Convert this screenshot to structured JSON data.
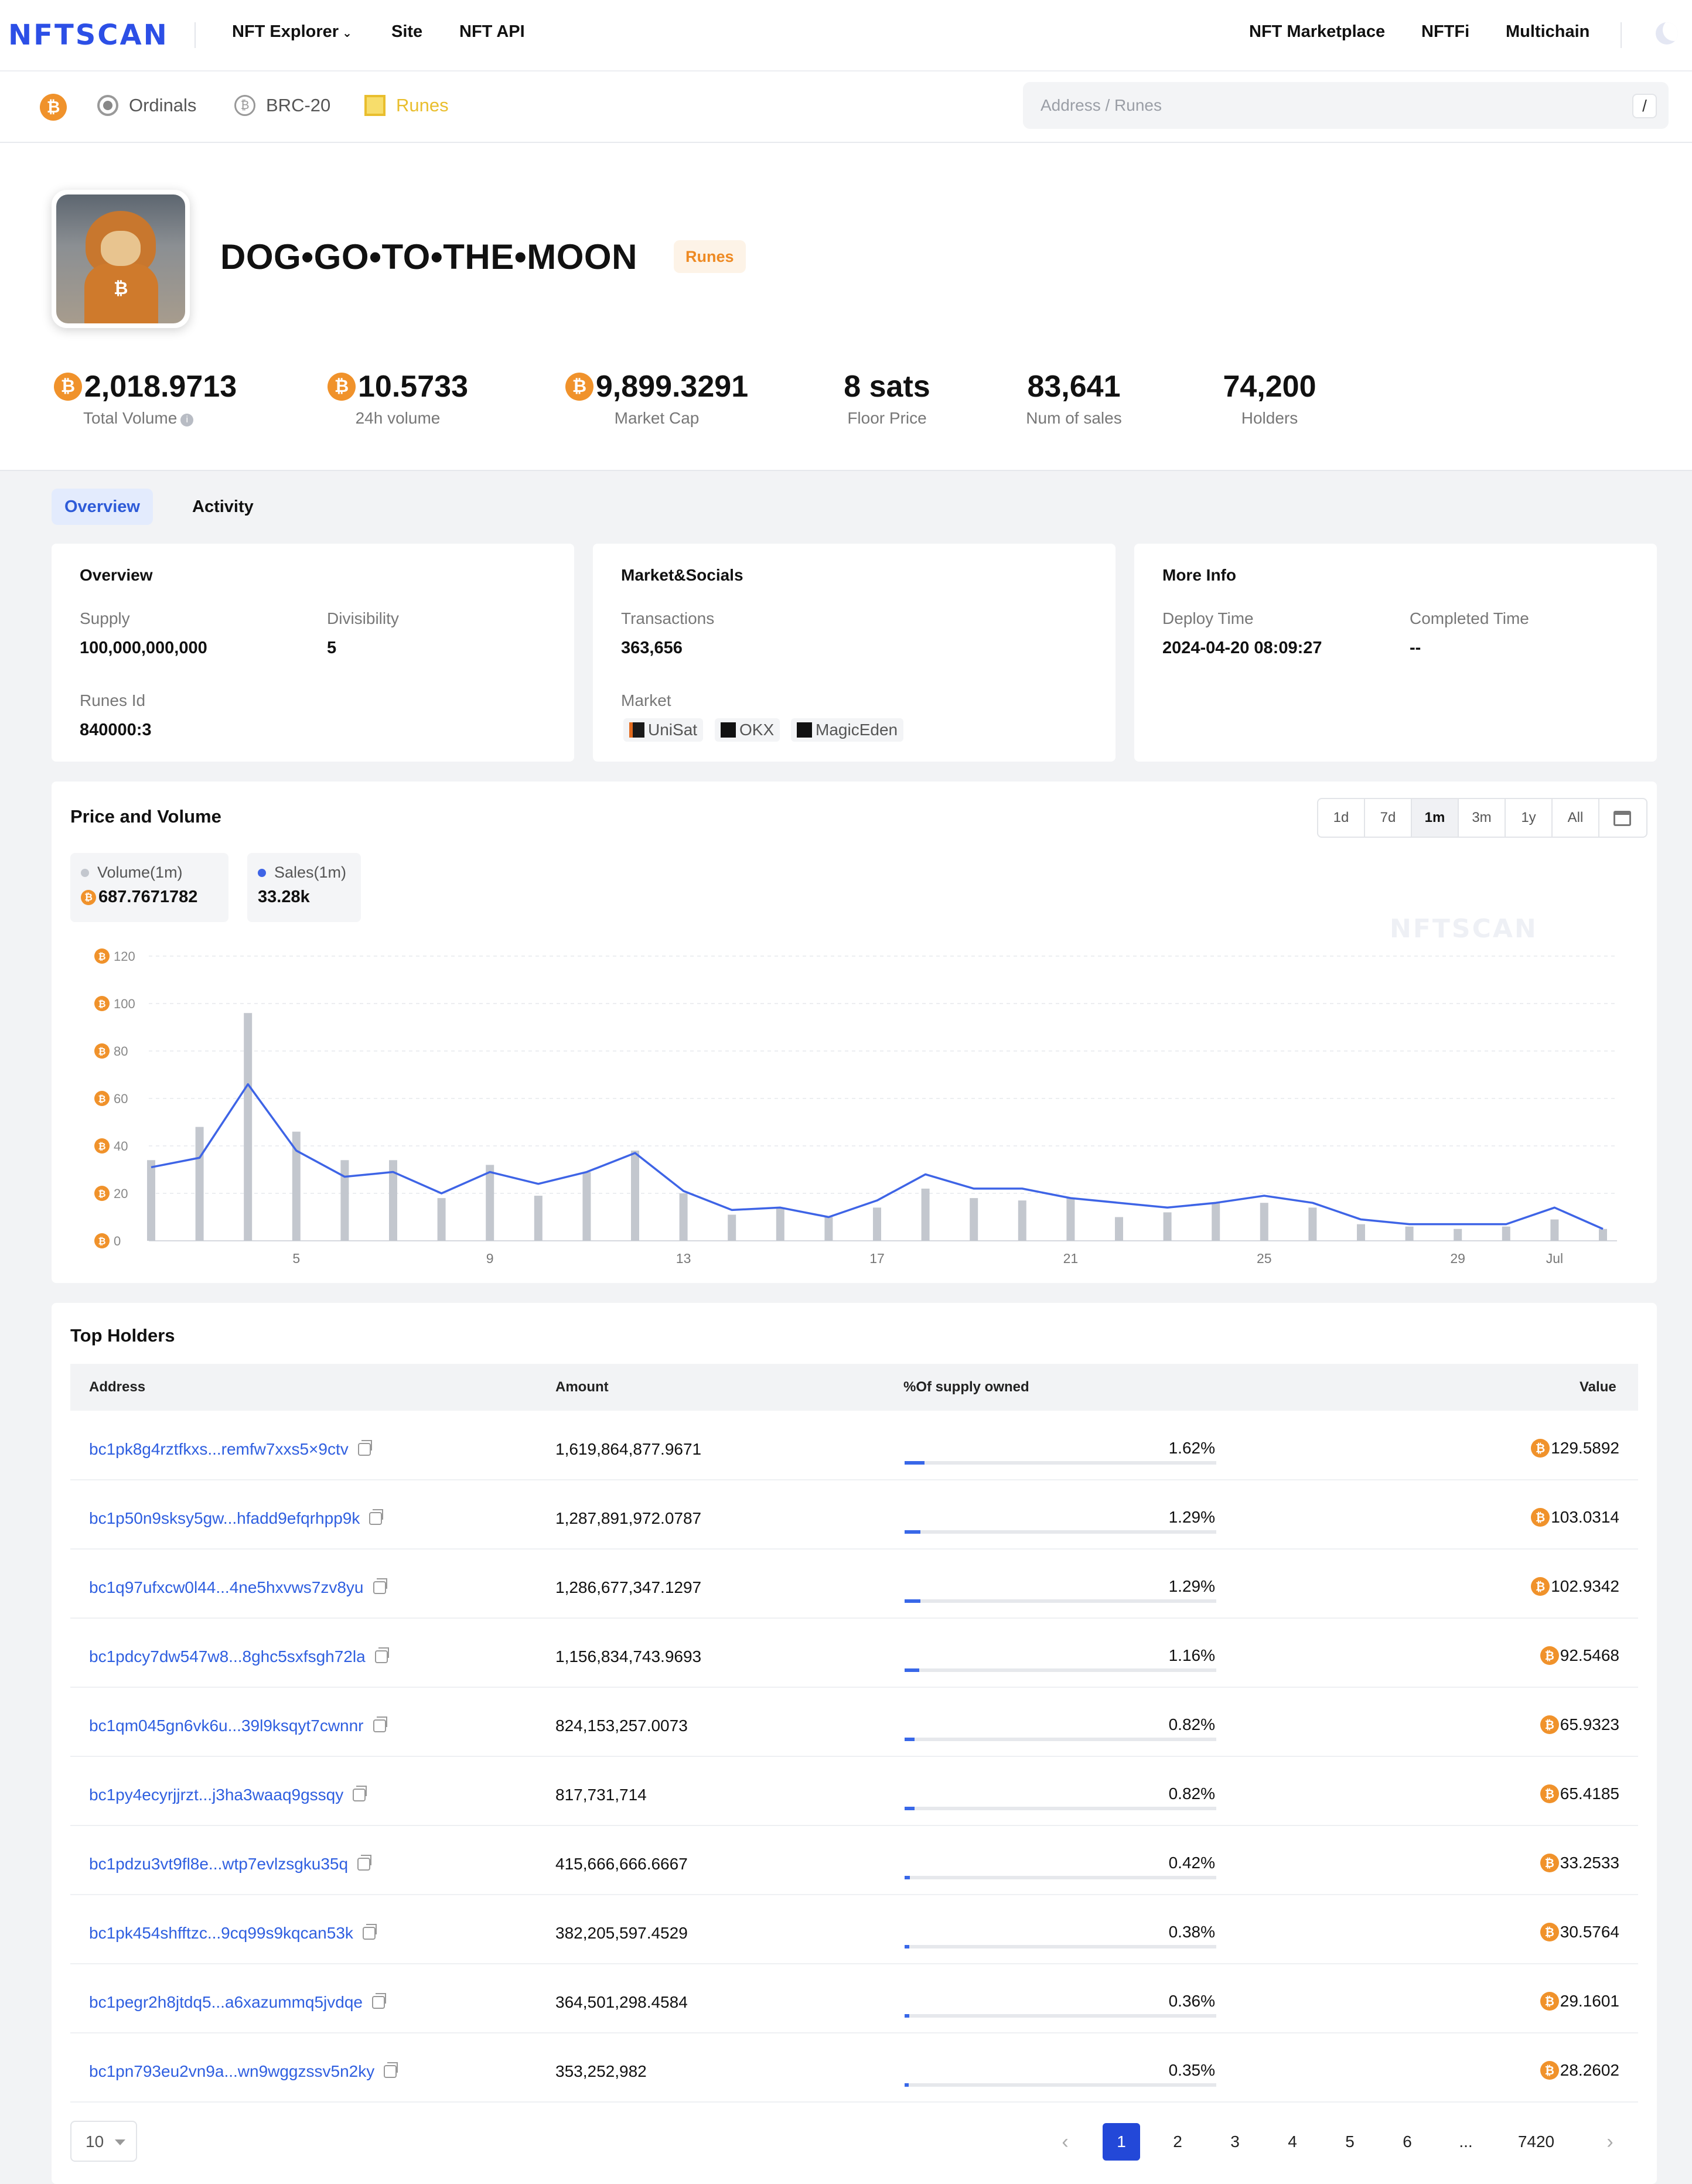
{
  "nav": {
    "logo": "NFTSCAN",
    "left_links": [
      "NFT Explorer",
      "Site",
      "NFT API"
    ],
    "right_links": [
      "NFT Marketplace",
      "NFTFi",
      "Multichain"
    ],
    "chevron": "chevron-down-icon"
  },
  "subnav": {
    "items": [
      "Ordinals",
      "BRC-20",
      "Runes"
    ],
    "active": "Runes",
    "search_placeholder": "Address / Runes",
    "shortcut": "/"
  },
  "token": {
    "name": "DOG•GO•TO•THE•MOON",
    "tag": "Runes"
  },
  "stats": [
    {
      "value": "2,018.9713",
      "label": "Total Volume",
      "btc": true
    },
    {
      "value": "10.5733",
      "label": "24h volume",
      "btc": true
    },
    {
      "value": "9,899.3291",
      "label": "Market Cap",
      "btc": true
    },
    {
      "value": "8 sats",
      "label": "Floor Price",
      "btc": false
    },
    {
      "value": "83,641",
      "label": "Num of sales",
      "btc": false
    },
    {
      "value": "74,200",
      "label": "Holders",
      "btc": false
    }
  ],
  "tabs": [
    "Overview",
    "Activity"
  ],
  "overview_card": {
    "title": "Overview",
    "supply_label": "Supply",
    "supply": "100,000,000,000",
    "divisibility_label": "Divisibility",
    "divisibility": "5",
    "runes_id_label": "Runes Id",
    "runes_id": "840000:3"
  },
  "market_card": {
    "title": "Market&Socials",
    "tx_label": "Transactions",
    "tx": "363,656",
    "market_label": "Market",
    "markets": [
      "UniSat",
      "OKX",
      "MagicEden"
    ]
  },
  "more_card": {
    "title": "More Info",
    "deploy_label": "Deploy Time",
    "deploy": "2024-04-20 08:09:27",
    "completed_label": "Completed Time",
    "completed": "--"
  },
  "chart_section": {
    "title": "Price and Volume",
    "ranges": [
      "1d",
      "7d",
      "1m",
      "3m",
      "1y",
      "All"
    ],
    "selected_range": "1m",
    "legend_volume_label": "Volume(1m)",
    "legend_volume_value": "687.7671782",
    "legend_sales_label": "Sales(1m)",
    "legend_sales_value": "33.28k",
    "watermark": "NFTSCAN"
  },
  "chart_data": {
    "type": "bar+line",
    "x_tick_labels": [
      "5",
      "9",
      "13",
      "17",
      "21",
      "25",
      "29",
      "Jul"
    ],
    "y_ticks": [
      0,
      20,
      40,
      60,
      80,
      100,
      120
    ],
    "ylim": [
      0,
      120
    ],
    "grid": true,
    "colors": {
      "volume": "#c3c7ce",
      "sales": "#3e64e6"
    },
    "series": [
      {
        "name": "Volume(1m)",
        "type": "bar",
        "values": [
          34,
          48,
          96,
          46,
          34,
          34,
          18,
          32,
          19,
          29,
          38,
          20,
          11,
          14,
          10,
          14,
          22,
          18,
          17,
          18,
          10,
          12,
          16,
          16,
          14,
          7,
          6,
          5,
          6,
          9,
          5
        ]
      },
      {
        "name": "Sales(1m)",
        "type": "line",
        "values": [
          31,
          35,
          66,
          38,
          27,
          29,
          20,
          29,
          24,
          29,
          37,
          21,
          13,
          14,
          10,
          17,
          28,
          22,
          22,
          18,
          16,
          14,
          16,
          19,
          16,
          9,
          7,
          7,
          7,
          14,
          5
        ]
      }
    ]
  },
  "holders": {
    "title": "Top Holders",
    "columns": [
      "Address",
      "Amount",
      "%Of supply owned",
      "Value"
    ],
    "rows": [
      {
        "address": "bc1pk8g4rztfkxs...remfw7xxs5×9ctv",
        "amount": "1,619,864,877.9671",
        "pct": "1.62%",
        "pct_num": 1.62,
        "value": "129.5892"
      },
      {
        "address": "bc1p50n9sksy5gw...hfadd9efqrhpp9k",
        "amount": "1,287,891,972.0787",
        "pct": "1.29%",
        "pct_num": 1.29,
        "value": "103.0314"
      },
      {
        "address": "bc1q97ufxcw0l44...4ne5hxvws7zv8yu",
        "amount": "1,286,677,347.1297",
        "pct": "1.29%",
        "pct_num": 1.29,
        "value": "102.9342"
      },
      {
        "address": "bc1pdcy7dw547w8...8ghc5sxfsgh72la",
        "amount": "1,156,834,743.9693",
        "pct": "1.16%",
        "pct_num": 1.16,
        "value": "92.5468"
      },
      {
        "address": "bc1qm045gn6vk6u...39l9ksqyt7cwnnr",
        "amount": "824,153,257.0073",
        "pct": "0.82%",
        "pct_num": 0.82,
        "value": "65.9323"
      },
      {
        "address": "bc1py4ecyrjjrzt...j3ha3waaq9gssqy",
        "amount": "817,731,714",
        "pct": "0.82%",
        "pct_num": 0.82,
        "value": "65.4185"
      },
      {
        "address": "bc1pdzu3vt9fl8e...wtp7evlzsgku35q",
        "amount": "415,666,666.6667",
        "pct": "0.42%",
        "pct_num": 0.42,
        "value": "33.2533"
      },
      {
        "address": "bc1pk454shfftzc...9cq99s9kqcan53k",
        "amount": "382,205,597.4529",
        "pct": "0.38%",
        "pct_num": 0.38,
        "value": "30.5764"
      },
      {
        "address": "bc1pegr2h8jtdq5...a6xazummq5jvdqe",
        "amount": "364,501,298.4584",
        "pct": "0.36%",
        "pct_num": 0.36,
        "value": "29.1601"
      },
      {
        "address": "bc1pn793eu2vn9a...wn9wggzssv5n2ky",
        "amount": "353,252,982",
        "pct": "0.35%",
        "pct_num": 0.35,
        "value": "28.2602"
      }
    ]
  },
  "pagination": {
    "page_size": "10",
    "pages": [
      "1",
      "2",
      "3",
      "4",
      "5",
      "6",
      "...",
      "7420"
    ],
    "current": "1"
  }
}
